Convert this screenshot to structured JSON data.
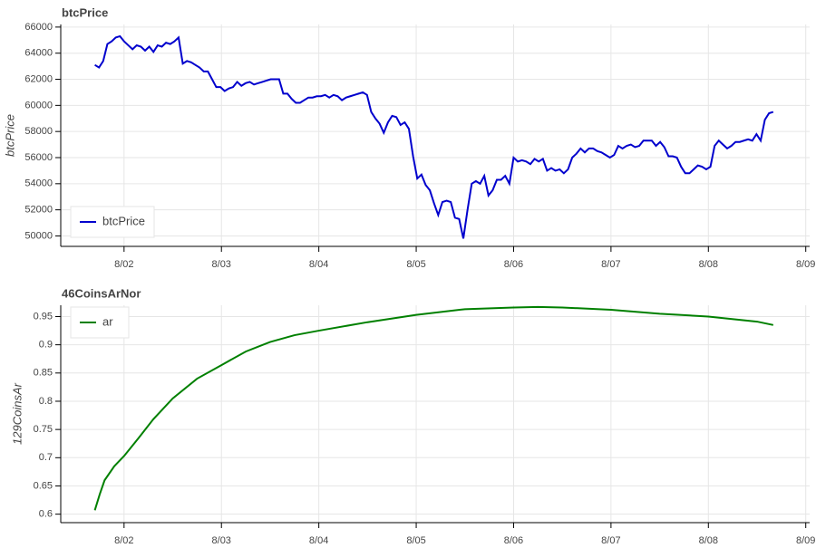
{
  "chart_data": [
    {
      "type": "line",
      "title": "btcPrice",
      "ylabel": "btcPrice",
      "xlim": [
        1.35,
        9.04
      ],
      "xticks": [
        {
          "value": 2,
          "label": "8/02"
        },
        {
          "value": 3,
          "label": "8/03"
        },
        {
          "value": 4,
          "label": "8/04"
        },
        {
          "value": 5,
          "label": "8/05"
        },
        {
          "value": 6,
          "label": "8/06"
        },
        {
          "value": 7,
          "label": "8/07"
        },
        {
          "value": 8,
          "label": "8/08"
        },
        {
          "value": 9,
          "label": "8/09"
        }
      ],
      "ylim": [
        49200,
        66200
      ],
      "yticks": [
        50000,
        52000,
        54000,
        56000,
        58000,
        60000,
        62000,
        64000,
        66000
      ],
      "grid": true,
      "legend": "bottom_left",
      "x": [
        1.7,
        1.743,
        1.786,
        1.829,
        1.872,
        1.915,
        1.958,
        2.001,
        2.044,
        2.087,
        2.13,
        2.173,
        2.216,
        2.259,
        2.302,
        2.345,
        2.388,
        2.431,
        2.474,
        2.517,
        2.56,
        2.603,
        2.646,
        2.689,
        2.732,
        2.775,
        2.818,
        2.861,
        2.904,
        2.947,
        2.99,
        3.033,
        3.076,
        3.119,
        3.162,
        3.205,
        3.248,
        3.291,
        3.334,
        3.377,
        3.42,
        3.463,
        3.506,
        3.549,
        3.592,
        3.635,
        3.678,
        3.721,
        3.764,
        3.807,
        3.85,
        3.893,
        3.936,
        3.979,
        4.022,
        4.065,
        4.108,
        4.151,
        4.194,
        4.237,
        4.28,
        4.323,
        4.366,
        4.409,
        4.452,
        4.495,
        4.538,
        4.581,
        4.624,
        4.667,
        4.71,
        4.753,
        4.796,
        4.839,
        4.882,
        4.925,
        4.968,
        5.011,
        5.054,
        5.097,
        5.14,
        5.183,
        5.226,
        5.269,
        5.312,
        5.355,
        5.398,
        5.441,
        5.484,
        5.527,
        5.57,
        5.613,
        5.656,
        5.699,
        5.742,
        5.785,
        5.828,
        5.871,
        5.914,
        5.957,
        6.0,
        6.043,
        6.086,
        6.129,
        6.172,
        6.215,
        6.258,
        6.301,
        6.344,
        6.387,
        6.43,
        6.473,
        6.516,
        6.559,
        6.602,
        6.645,
        6.688,
        6.731,
        6.774,
        6.817,
        6.86,
        6.903,
        6.946,
        6.989,
        7.032,
        7.075,
        7.118,
        7.161,
        7.204,
        7.247,
        7.29,
        7.333,
        7.376,
        7.419,
        7.462,
        7.505,
        7.548,
        7.591,
        7.634,
        7.677,
        7.72,
        7.763,
        7.806,
        7.849,
        7.892,
        7.935,
        7.978,
        8.021,
        8.064,
        8.107,
        8.15,
        8.193,
        8.236,
        8.279,
        8.322,
        8.365,
        8.408,
        8.451,
        8.494,
        8.537,
        8.58,
        8.623,
        8.666
      ],
      "series": [
        {
          "name": "btcPrice",
          "color": "#0000cd",
          "values": [
            63100,
            62900,
            63400,
            64700,
            64900,
            65200,
            65300,
            64900,
            64600,
            64300,
            64600,
            64500,
            64200,
            64500,
            64100,
            64600,
            64500,
            64800,
            64700,
            64900,
            65200,
            63200,
            63400,
            63300,
            63100,
            62900,
            62600,
            62600,
            62000,
            61400,
            61400,
            61100,
            61300,
            61400,
            61800,
            61500,
            61700,
            61800,
            61600,
            61700,
            61800,
            61900,
            62000,
            62000,
            62000,
            60900,
            60900,
            60500,
            60200,
            60200,
            60400,
            60600,
            60600,
            60700,
            60700,
            60800,
            60600,
            60800,
            60700,
            60400,
            60600,
            60700,
            60800,
            60900,
            61000,
            60800,
            59500,
            59000,
            58600,
            57900,
            58700,
            59200,
            59100,
            58500,
            58700,
            58200,
            56100,
            54400,
            54700,
            53900,
            53500,
            52500,
            51600,
            52600,
            52700,
            52600,
            51400,
            51300,
            49800,
            52000,
            54000,
            54200,
            54000,
            54600,
            53100,
            53500,
            54300,
            54300,
            54600,
            54000,
            56000,
            55700,
            55800,
            55700,
            55500,
            55900,
            55700,
            55900,
            55000,
            55200,
            55000,
            55100,
            54800,
            55100,
            56000,
            56300,
            56700,
            56400,
            56700,
            56700,
            56500,
            56400,
            56200,
            56000,
            56200,
            56900,
            56700,
            56900,
            57000,
            56800,
            56900,
            57300,
            57300,
            57300,
            56900,
            57200,
            56800,
            56100,
            56100,
            56000,
            55300,
            54800,
            54800,
            55100,
            55400,
            55300,
            55100,
            55300,
            56900,
            57300,
            57000,
            56700,
            56900,
            57200,
            57200,
            57300,
            57400,
            57300,
            57800,
            57300,
            58900,
            59400,
            59500
          ]
        }
      ]
    },
    {
      "type": "line",
      "title": "46CoinsArNor",
      "ylabel": "129CoinsAr",
      "xlim": [
        1.35,
        9.04
      ],
      "xticks": [
        {
          "value": 2,
          "label": "8/02"
        },
        {
          "value": 3,
          "label": "8/03"
        },
        {
          "value": 4,
          "label": "8/04"
        },
        {
          "value": 5,
          "label": "8/05"
        },
        {
          "value": 6,
          "label": "8/06"
        },
        {
          "value": 7,
          "label": "8/07"
        },
        {
          "value": 8,
          "label": "8/08"
        },
        {
          "value": 9,
          "label": "8/09"
        }
      ],
      "ylim": [
        0.585,
        0.97
      ],
      "yticks": [
        0.6,
        0.65,
        0.7,
        0.75,
        0.8,
        0.85,
        0.9,
        0.95
      ],
      "grid": true,
      "legend": "top_left",
      "x": [
        1.7,
        1.75,
        1.8,
        1.9,
        2.0,
        2.15,
        2.3,
        2.5,
        2.75,
        3.0,
        3.25,
        3.5,
        3.75,
        4.0,
        4.5,
        5.0,
        5.5,
        6.0,
        6.25,
        6.5,
        7.0,
        7.5,
        8.0,
        8.5,
        8.666
      ],
      "series": [
        {
          "name": "ar",
          "color": "#008000",
          "values": [
            0.607,
            0.635,
            0.66,
            0.685,
            0.703,
            0.735,
            0.768,
            0.805,
            0.84,
            0.864,
            0.888,
            0.905,
            0.917,
            0.925,
            0.94,
            0.953,
            0.963,
            0.966,
            0.967,
            0.966,
            0.962,
            0.955,
            0.95,
            0.941,
            0.935
          ]
        }
      ]
    }
  ]
}
